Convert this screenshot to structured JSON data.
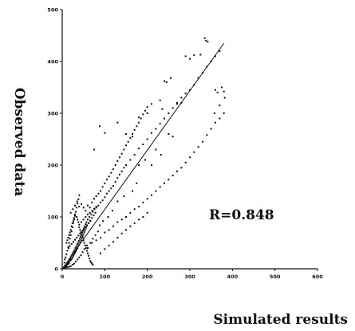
{
  "chart_data": {
    "type": "scatter",
    "title": "",
    "xlabel": "Simulated results",
    "ylabel": "Observed data",
    "xlim": [
      0,
      600
    ],
    "ylim": [
      0,
      500
    ],
    "xticks": [
      "0",
      "100",
      "200",
      "300",
      "400",
      "500",
      "600"
    ],
    "yticks": [
      "0",
      "100",
      "200",
      "300",
      "400",
      "500"
    ],
    "grid": false,
    "annotation": "R=0.848",
    "fit_line": {
      "x": [
        0,
        380
      ],
      "y": [
        0,
        435
      ]
    },
    "series": [
      {
        "points": [
          [
            2,
            1
          ],
          [
            3,
            2
          ],
          [
            4,
            1
          ],
          [
            5,
            3
          ],
          [
            6,
            2
          ],
          [
            7,
            5
          ],
          [
            8,
            4
          ],
          [
            9,
            6
          ],
          [
            10,
            8
          ],
          [
            11,
            7
          ],
          [
            12,
            10
          ],
          [
            13,
            12
          ],
          [
            14,
            9
          ],
          [
            15,
            14
          ],
          [
            16,
            11
          ],
          [
            17,
            18
          ],
          [
            18,
            15
          ],
          [
            19,
            20
          ],
          [
            20,
            17
          ],
          [
            21,
            24
          ],
          [
            22,
            19
          ],
          [
            23,
            27
          ],
          [
            24,
            22
          ],
          [
            25,
            30
          ],
          [
            26,
            25
          ],
          [
            27,
            33
          ],
          [
            28,
            28
          ],
          [
            29,
            36
          ],
          [
            30,
            31
          ],
          [
            31,
            40
          ],
          [
            32,
            34
          ],
          [
            33,
            43
          ],
          [
            34,
            37
          ],
          [
            35,
            47
          ],
          [
            36,
            40
          ],
          [
            37,
            50
          ],
          [
            38,
            44
          ],
          [
            39,
            54
          ],
          [
            40,
            47
          ],
          [
            41,
            58
          ],
          [
            42,
            51
          ],
          [
            43,
            62
          ],
          [
            44,
            55
          ],
          [
            45,
            66
          ],
          [
            46,
            59
          ],
          [
            47,
            70
          ],
          [
            48,
            63
          ],
          [
            49,
            74
          ],
          [
            50,
            67
          ],
          [
            51,
            78
          ],
          [
            52,
            71
          ],
          [
            53,
            82
          ],
          [
            54,
            75
          ],
          [
            55,
            86
          ],
          [
            56,
            79
          ],
          [
            57,
            90
          ],
          [
            58,
            83
          ],
          [
            60,
            95
          ],
          [
            62,
            88
          ],
          [
            64,
            100
          ],
          [
            66,
            93
          ],
          [
            68,
            105
          ],
          [
            70,
            98
          ],
          [
            72,
            110
          ],
          [
            74,
            103
          ],
          [
            76,
            115
          ],
          [
            78,
            108
          ],
          [
            80,
            120
          ],
          [
            5,
            12
          ],
          [
            6,
            18
          ],
          [
            8,
            22
          ],
          [
            10,
            28
          ],
          [
            12,
            35
          ],
          [
            14,
            42
          ],
          [
            16,
            50
          ],
          [
            18,
            58
          ],
          [
            20,
            65
          ],
          [
            22,
            72
          ],
          [
            24,
            80
          ],
          [
            26,
            88
          ],
          [
            28,
            95
          ],
          [
            30,
            102
          ],
          [
            32,
            110
          ],
          [
            34,
            118
          ],
          [
            36,
            126
          ],
          [
            38,
            134
          ],
          [
            40,
            142
          ],
          [
            20,
            108
          ],
          [
            25,
            115
          ],
          [
            30,
            122
          ],
          [
            35,
            130
          ],
          [
            40,
            120
          ],
          [
            45,
            125
          ],
          [
            50,
            118
          ],
          [
            55,
            112
          ],
          [
            60,
            122
          ],
          [
            65,
            118
          ],
          [
            70,
            128
          ],
          [
            75,
            135
          ],
          [
            80,
            140
          ],
          [
            85,
            145
          ],
          [
            90,
            150
          ],
          [
            95,
            158
          ],
          [
            100,
            165
          ],
          [
            105,
            172
          ],
          [
            110,
            178
          ],
          [
            115,
            185
          ],
          [
            120,
            192
          ],
          [
            125,
            200
          ],
          [
            130,
            208
          ],
          [
            135,
            215
          ],
          [
            140,
            222
          ],
          [
            145,
            230
          ],
          [
            150,
            238
          ],
          [
            155,
            245
          ],
          [
            160,
            252
          ],
          [
            165,
            260
          ],
          [
            170,
            268
          ],
          [
            175,
            275
          ],
          [
            180,
            282
          ],
          [
            185,
            290
          ],
          [
            190,
            298
          ],
          [
            195,
            305
          ],
          [
            200,
            312
          ],
          [
            40,
            85
          ],
          [
            45,
            90
          ],
          [
            50,
            95
          ],
          [
            55,
            100
          ],
          [
            60,
            105
          ],
          [
            65,
            108
          ],
          [
            70,
            112
          ],
          [
            75,
            116
          ],
          [
            80,
            118
          ],
          [
            85,
            122
          ],
          [
            90,
            128
          ],
          [
            95,
            132
          ],
          [
            100,
            138
          ],
          [
            105,
            145
          ],
          [
            110,
            150
          ],
          [
            115,
            155
          ],
          [
            120,
            160
          ],
          [
            125,
            168
          ],
          [
            130,
            175
          ],
          [
            135,
            182
          ],
          [
            140,
            188
          ],
          [
            145,
            195
          ],
          [
            150,
            200
          ],
          [
            160,
            210
          ],
          [
            170,
            220
          ],
          [
            180,
            232
          ],
          [
            190,
            240
          ],
          [
            200,
            250
          ],
          [
            210,
            262
          ],
          [
            220,
            270
          ],
          [
            230,
            280
          ],
          [
            240,
            290
          ],
          [
            250,
            300
          ],
          [
            260,
            310
          ],
          [
            270,
            320
          ],
          [
            280,
            330
          ],
          [
            290,
            338
          ],
          [
            300,
            345
          ],
          [
            310,
            355
          ],
          [
            320,
            368
          ],
          [
            330,
            378
          ],
          [
            340,
            390
          ],
          [
            350,
            400
          ],
          [
            360,
            410
          ],
          [
            370,
            420
          ],
          [
            60,
            40
          ],
          [
            70,
            50
          ],
          [
            80,
            55
          ],
          [
            90,
            60
          ],
          [
            100,
            70
          ],
          [
            110,
            75
          ],
          [
            120,
            82
          ],
          [
            130,
            90
          ],
          [
            140,
            95
          ],
          [
            150,
            100
          ],
          [
            160,
            108
          ],
          [
            170,
            115
          ],
          [
            180,
            120
          ],
          [
            190,
            128
          ],
          [
            200,
            135
          ],
          [
            210,
            142
          ],
          [
            220,
            150
          ],
          [
            230,
            158
          ],
          [
            240,
            165
          ],
          [
            250,
            172
          ],
          [
            260,
            180
          ],
          [
            270,
            188
          ],
          [
            280,
            195
          ],
          [
            290,
            205
          ],
          [
            300,
            215
          ],
          [
            310,
            225
          ],
          [
            320,
            235
          ],
          [
            330,
            245
          ],
          [
            340,
            258
          ],
          [
            350,
            270
          ],
          [
            360,
            282
          ],
          [
            370,
            290
          ],
          [
            380,
            300
          ],
          [
            90,
            30
          ],
          [
            100,
            38
          ],
          [
            110,
            45
          ],
          [
            120,
            52
          ],
          [
            130,
            60
          ],
          [
            140,
            68
          ],
          [
            150,
            75
          ],
          [
            160,
            82
          ],
          [
            170,
            88
          ],
          [
            180,
            95
          ],
          [
            190,
            100
          ],
          [
            200,
            108
          ],
          [
            75,
            230
          ],
          [
            100,
            262
          ],
          [
            88,
            275
          ],
          [
            130,
            282
          ],
          [
            150,
            260
          ],
          [
            165,
            255
          ],
          [
            180,
            292
          ],
          [
            200,
            300
          ],
          [
            210,
            318
          ],
          [
            230,
            325
          ],
          [
            235,
            308
          ],
          [
            240,
            362
          ],
          [
            245,
            360
          ],
          [
            255,
            368
          ],
          [
            270,
            318
          ],
          [
            280,
            320
          ],
          [
            290,
            410
          ],
          [
            300,
            405
          ],
          [
            310,
            412
          ],
          [
            325,
            413
          ],
          [
            335,
            445
          ],
          [
            338,
            440
          ],
          [
            342,
            438
          ],
          [
            360,
            345
          ],
          [
            365,
            340
          ],
          [
            375,
            350
          ],
          [
            380,
            342
          ],
          [
            382,
            330
          ],
          [
            370,
            315
          ],
          [
            358,
            300
          ],
          [
            250,
            260
          ],
          [
            260,
            255
          ],
          [
            220,
            230
          ],
          [
            232,
            220
          ],
          [
            210,
            200
          ],
          [
            195,
            210
          ],
          [
            180,
            200
          ],
          [
            175,
            165
          ],
          [
            165,
            150
          ],
          [
            145,
            140
          ],
          [
            130,
            130
          ],
          [
            118,
            112
          ],
          [
            108,
            100
          ],
          [
            96,
            92
          ],
          [
            88,
            84
          ],
          [
            84,
            72
          ],
          [
            78,
            65
          ],
          [
            72,
            58
          ],
          [
            66,
            50
          ],
          [
            58,
            45
          ],
          [
            52,
            38
          ],
          [
            48,
            32
          ],
          [
            44,
            26
          ],
          [
            40,
            22
          ],
          [
            36,
            18
          ],
          [
            32,
            14
          ],
          [
            28,
            10
          ],
          [
            24,
            8
          ],
          [
            20,
            5
          ],
          [
            16,
            4
          ],
          [
            12,
            3
          ],
          [
            8,
            2
          ],
          [
            15,
            40
          ],
          [
            18,
            44
          ],
          [
            22,
            48
          ],
          [
            26,
            52
          ],
          [
            30,
            56
          ],
          [
            34,
            60
          ],
          [
            38,
            64
          ],
          [
            42,
            68
          ],
          [
            46,
            72
          ],
          [
            50,
            76
          ],
          [
            54,
            80
          ],
          [
            58,
            84
          ],
          [
            62,
            88
          ],
          [
            66,
            92
          ],
          [
            10,
            50
          ],
          [
            12,
            55
          ],
          [
            14,
            60
          ],
          [
            16,
            65
          ],
          [
            18,
            70
          ],
          [
            20,
            75
          ],
          [
            22,
            82
          ],
          [
            24,
            88
          ],
          [
            26,
            92
          ],
          [
            28,
            98
          ],
          [
            30,
            105
          ],
          [
            32,
            110
          ],
          [
            34,
            100
          ],
          [
            36,
            95
          ],
          [
            38,
            90
          ],
          [
            40,
            80
          ],
          [
            42,
            75
          ],
          [
            44,
            70
          ],
          [
            46,
            65
          ],
          [
            48,
            60
          ],
          [
            50,
            55
          ],
          [
            52,
            50
          ],
          [
            54,
            45
          ],
          [
            56,
            40
          ],
          [
            58,
            35
          ],
          [
            60,
            30
          ],
          [
            62,
            25
          ],
          [
            64,
            20
          ],
          [
            66,
            15
          ],
          [
            68,
            12
          ],
          [
            70,
            10
          ],
          [
            72,
            8
          ]
        ]
      }
    ]
  }
}
